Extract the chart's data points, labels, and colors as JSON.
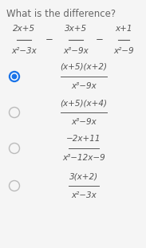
{
  "title": "What is the difference?",
  "bg_color": "#f5f5f5",
  "text_color": "#555555",
  "selected_color": "#1a73e8",
  "unselected_color": "#bbbbbb",
  "question": {
    "fractions": [
      {
        "num": "2x+5",
        "den": "x²−3x"
      },
      {
        "num": "3x+5",
        "den": "x³−9x"
      },
      {
        "num": "x+1",
        "den": "x²−9"
      }
    ]
  },
  "options": [
    {
      "num": "(x+5)(x+2)",
      "den": "x³−9x",
      "selected": true
    },
    {
      "num": "(x+5)(x+4)",
      "den": "x³−9x",
      "selected": false
    },
    {
      "num": "−2x+11",
      "den": "x³−12x−9",
      "selected": false
    },
    {
      "num": "3(x+2)",
      "den": "x²−3x",
      "selected": false
    }
  ]
}
